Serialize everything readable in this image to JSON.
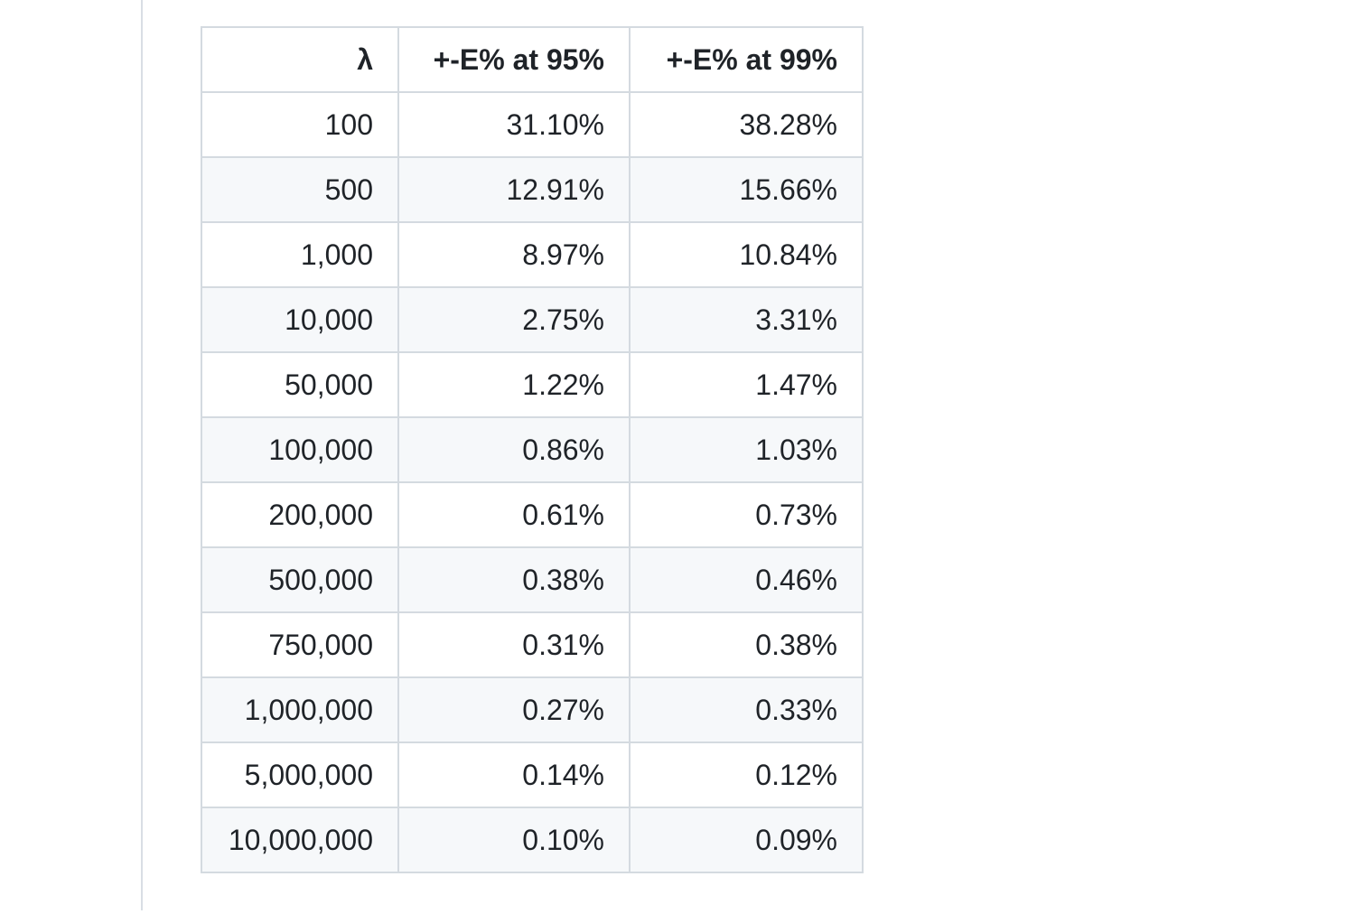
{
  "page": {
    "background": "#ffffff",
    "divider_color": "#d9dee4"
  },
  "table": {
    "columns": [
      {
        "label": "λ"
      },
      {
        "label": "+-E% at 95%"
      },
      {
        "label": "+-E% at 99%"
      }
    ],
    "rows": [
      [
        "100",
        "31.10%",
        "38.28%"
      ],
      [
        "500",
        "12.91%",
        "15.66%"
      ],
      [
        "1,000",
        "8.97%",
        "10.84%"
      ],
      [
        "10,000",
        "2.75%",
        "3.31%"
      ],
      [
        "50,000",
        "1.22%",
        "1.47%"
      ],
      [
        "100,000",
        "0.86%",
        "1.03%"
      ],
      [
        "200,000",
        "0.61%",
        "0.73%"
      ],
      [
        "500,000",
        "0.38%",
        "0.46%"
      ],
      [
        "750,000",
        "0.31%",
        "0.38%"
      ],
      [
        "1,000,000",
        "0.27%",
        "0.33%"
      ],
      [
        "5,000,000",
        "0.14%",
        "0.12%"
      ],
      [
        "10,000,000",
        "0.10%",
        "0.09%"
      ]
    ],
    "colors": {
      "text": "#1f2328",
      "border": "#d4dae0",
      "row_bg": "#ffffff",
      "row_alt_bg": "#f6f8fa"
    }
  }
}
